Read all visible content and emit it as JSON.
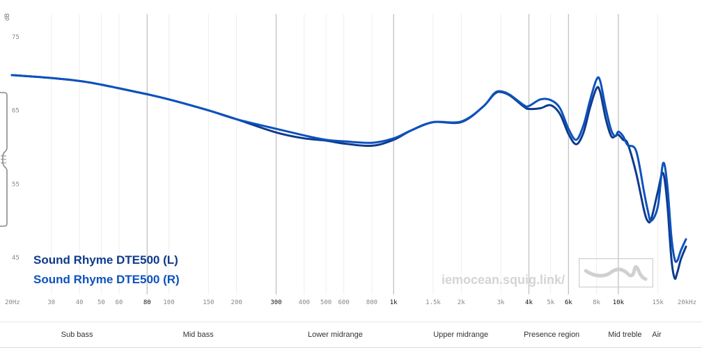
{
  "chart_data": {
    "type": "line",
    "title": "",
    "ylabel": "dB",
    "xlabel": "",
    "x_scale": "log",
    "xlim": [
      20,
      20000
    ],
    "ylim": [
      40,
      80
    ],
    "y_ticks": [
      "45",
      "55",
      "65",
      "75"
    ],
    "x_ticks": [
      {
        "label": "20Hz",
        "freq": 20
      },
      {
        "label": "30",
        "freq": 30
      },
      {
        "label": "40",
        "freq": 40
      },
      {
        "label": "50",
        "freq": 50
      },
      {
        "label": "60",
        "freq": 60
      },
      {
        "label": "80",
        "freq": 80,
        "major": true
      },
      {
        "label": "100",
        "freq": 100
      },
      {
        "label": "150",
        "freq": 150
      },
      {
        "label": "200",
        "freq": 200
      },
      {
        "label": "300",
        "freq": 300,
        "major": true
      },
      {
        "label": "400",
        "freq": 400
      },
      {
        "label": "500",
        "freq": 500
      },
      {
        "label": "600",
        "freq": 600
      },
      {
        "label": "800",
        "freq": 800
      },
      {
        "label": "1k",
        "freq": 1000,
        "major": true
      },
      {
        "label": "1.5k",
        "freq": 1500
      },
      {
        "label": "2k",
        "freq": 2000
      },
      {
        "label": "3k",
        "freq": 3000
      },
      {
        "label": "4k",
        "freq": 4000,
        "major": true
      },
      {
        "label": "5k",
        "freq": 5000
      },
      {
        "label": "6k",
        "freq": 6000,
        "major": true
      },
      {
        "label": "8k",
        "freq": 8000
      },
      {
        "label": "10k",
        "freq": 10000,
        "major": true
      },
      {
        "label": "15k",
        "freq": 15000
      },
      {
        "label": "20kHz",
        "freq": 20000
      }
    ],
    "grid_lines": [
      30,
      40,
      50,
      60,
      100,
      150,
      200,
      400,
      500,
      600,
      800,
      1500,
      2000,
      3000,
      5000,
      8000,
      15000
    ],
    "band_lines": [
      80,
      300,
      1000,
      4000,
      6000,
      10000
    ],
    "series": [
      {
        "name": "Sound Rhyme DTE500 (L)",
        "color": "#0e3a8c",
        "points": [
          [
            20,
            69.8
          ],
          [
            30,
            69.4
          ],
          [
            40,
            69.0
          ],
          [
            50,
            68.5
          ],
          [
            60,
            68.0
          ],
          [
            80,
            67.2
          ],
          [
            100,
            66.5
          ],
          [
            150,
            65.0
          ],
          [
            200,
            63.8
          ],
          [
            300,
            62.0
          ],
          [
            400,
            61.2
          ],
          [
            500,
            60.9
          ],
          [
            600,
            60.5
          ],
          [
            800,
            60.2
          ],
          [
            1000,
            61.0
          ],
          [
            1200,
            62.3
          ],
          [
            1500,
            63.4
          ],
          [
            2000,
            63.4
          ],
          [
            2500,
            65.5
          ],
          [
            2800,
            67.2
          ],
          [
            3000,
            67.5
          ],
          [
            3300,
            67.0
          ],
          [
            3800,
            65.5
          ],
          [
            4000,
            65.2
          ],
          [
            4500,
            65.3
          ],
          [
            5000,
            65.7
          ],
          [
            5500,
            64.5
          ],
          [
            6000,
            61.8
          ],
          [
            6500,
            60.4
          ],
          [
            7000,
            62.0
          ],
          [
            7500,
            65.5
          ],
          [
            8000,
            68.0
          ],
          [
            8300,
            67.5
          ],
          [
            8800,
            63.8
          ],
          [
            9300,
            61.5
          ],
          [
            9700,
            61.5
          ],
          [
            10000,
            61.7
          ],
          [
            10500,
            61.0
          ],
          [
            11000,
            60.5
          ],
          [
            12000,
            56.5
          ],
          [
            13000,
            51.5
          ],
          [
            13500,
            50.0
          ],
          [
            14000,
            50.2
          ],
          [
            15000,
            54.0
          ],
          [
            15800,
            56.5
          ],
          [
            16500,
            52.5
          ],
          [
            17200,
            45.0
          ],
          [
            17800,
            42.2
          ],
          [
            18300,
            43.0
          ],
          [
            19000,
            44.8
          ],
          [
            20000,
            46.5
          ]
        ]
      },
      {
        "name": "Sound Rhyme DTE500 (R)",
        "color": "#0d52bd",
        "points": [
          [
            20,
            69.8
          ],
          [
            30,
            69.4
          ],
          [
            40,
            69.0
          ],
          [
            50,
            68.5
          ],
          [
            60,
            68.0
          ],
          [
            80,
            67.2
          ],
          [
            100,
            66.5
          ],
          [
            150,
            65.0
          ],
          [
            200,
            63.8
          ],
          [
            300,
            62.5
          ],
          [
            400,
            61.6
          ],
          [
            500,
            61.0
          ],
          [
            600,
            60.8
          ],
          [
            800,
            60.6
          ],
          [
            1000,
            61.2
          ],
          [
            1200,
            62.3
          ],
          [
            1500,
            63.4
          ],
          [
            2000,
            63.5
          ],
          [
            2500,
            65.5
          ],
          [
            2800,
            67.3
          ],
          [
            3000,
            67.6
          ],
          [
            3300,
            67.1
          ],
          [
            3800,
            65.7
          ],
          [
            4000,
            65.6
          ],
          [
            4500,
            66.5
          ],
          [
            5000,
            66.4
          ],
          [
            5500,
            65.3
          ],
          [
            6000,
            62.5
          ],
          [
            6500,
            61.0
          ],
          [
            7000,
            63.0
          ],
          [
            7500,
            66.5
          ],
          [
            8000,
            69.2
          ],
          [
            8300,
            69.0
          ],
          [
            8800,
            65.2
          ],
          [
            9300,
            62.3
          ],
          [
            9700,
            61.5
          ],
          [
            10000,
            62.1
          ],
          [
            10500,
            61.5
          ],
          [
            11000,
            60.3
          ],
          [
            12000,
            59.5
          ],
          [
            13000,
            54.0
          ],
          [
            13500,
            51.5
          ],
          [
            14000,
            50.0
          ],
          [
            15000,
            52.0
          ],
          [
            15800,
            57.8
          ],
          [
            16500,
            55.0
          ],
          [
            17200,
            48.0
          ],
          [
            17800,
            44.8
          ],
          [
            18300,
            44.6
          ],
          [
            19000,
            46.0
          ],
          [
            20000,
            47.5
          ]
        ]
      }
    ]
  },
  "legend": {
    "items": [
      {
        "label": "Sound Rhyme DTE500 (L)",
        "color": "#0e3a8c"
      },
      {
        "label": "Sound Rhyme DTE500 (R)",
        "color": "#0d52bd"
      }
    ]
  },
  "watermark": "iemocean.squig.link/",
  "bands": [
    {
      "label": "Sub bass",
      "freq": 39
    },
    {
      "label": "Mid bass",
      "freq": 135
    },
    {
      "label": "Lower midrange",
      "freq": 550
    },
    {
      "label": "Upper midrange",
      "freq": 1990
    },
    {
      "label": "Presence region",
      "freq": 5050
    },
    {
      "label": "Mid treble",
      "freq": 10700
    },
    {
      "label": "Air",
      "freq": 24000
    }
  ],
  "icons": {
    "logo": "squig-logo-icon",
    "handle": "drag-handle-icon"
  }
}
